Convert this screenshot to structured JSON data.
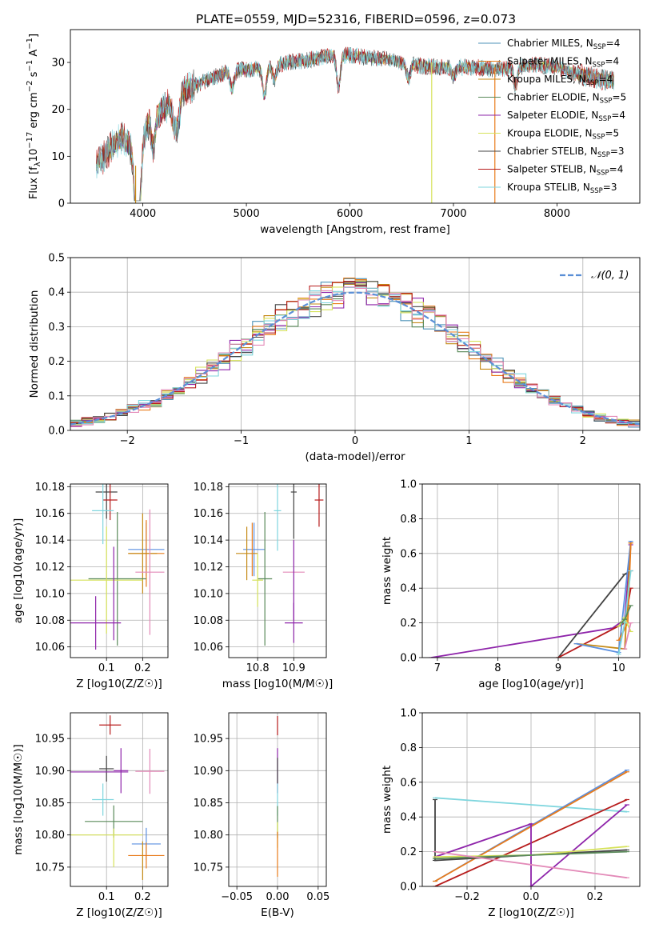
{
  "title": "PLATE=0559, MJD=52316, FIBERID=0596, z=0.073",
  "colors": {
    "chabrier_miles": "#4f93b8",
    "salpeter_miles": "#e87b1a",
    "kroupa_miles": "#c58a16",
    "chabrier_elodie": "#5a8a5a",
    "salpeter_elodie": "#8e24aa",
    "kroupa_elodie": "#d6e25a",
    "chabrier_stelib": "#444444",
    "salpeter_stelib": "#b71c1c",
    "kroupa_stelib": "#7fd6de",
    "pink": "#e38ab8",
    "blue": "#5b8fe0",
    "normal": "#5b8fd6"
  },
  "chart_data": [
    {
      "id": "spectrum",
      "type": "line",
      "xlabel": "wavelength [Angstrom, rest frame]",
      "ylabel": "Flux [f_λ 10^-17 erg cm^-2 s^-1 A^-1]",
      "xlim": [
        3300,
        8800
      ],
      "ylim": [
        0,
        37
      ],
      "xticks": [
        4000,
        5000,
        6000,
        7000,
        8000
      ],
      "yticks": [
        0,
        10,
        20,
        30
      ],
      "legend_position": "top-right",
      "series": [
        {
          "name": "Chabrier MILES, N_SSP=4",
          "label": "Chabrier MILES, N",
          "n": "=4",
          "color_key": "chabrier_miles"
        },
        {
          "name": "Salpeter MILES, N_SSP=4",
          "label": "Salpeter MILES, N",
          "n": "=4",
          "color_key": "salpeter_miles"
        },
        {
          "name": "Kroupa MILES, N_SSP=4",
          "label": "Kroupa MILES, N",
          "n": "=4",
          "color_key": "kroupa_miles"
        },
        {
          "name": "Chabrier ELODIE, N_SSP=5",
          "label": "Chabrier ELODIE, N",
          "n": "=5",
          "color_key": "chabrier_elodie"
        },
        {
          "name": "Salpeter ELODIE, N_SSP=4",
          "label": "Salpeter ELODIE, N",
          "n": "=4",
          "color_key": "salpeter_elodie"
        },
        {
          "name": "Kroupa ELODIE, N_SSP=5",
          "label": "Kroupa ELODIE, N",
          "n": "=5",
          "color_key": "kroupa_elodie"
        },
        {
          "name": "Chabrier STELIB, N_SSP=3",
          "label": "Chabrier STELIB, N",
          "n": "=3",
          "color_key": "chabrier_stelib"
        },
        {
          "name": "Salpeter STELIB, N_SSP=4",
          "label": "Salpeter STELIB, N",
          "n": "=4",
          "color_key": "salpeter_stelib"
        },
        {
          "name": "Kroupa STELIB, N_SSP=3",
          "label": "Kroupa STELIB, N",
          "n": "=3",
          "color_key": "kroupa_stelib"
        }
      ],
      "envelope": [
        [
          3550,
          8
        ],
        [
          3700,
          12
        ],
        [
          3800,
          14
        ],
        [
          3950,
          10
        ],
        [
          4050,
          17
        ],
        [
          4200,
          20
        ],
        [
          4400,
          24
        ],
        [
          4600,
          26
        ],
        [
          4800,
          28
        ],
        [
          5000,
          28.5
        ],
        [
          5200,
          29
        ],
        [
          5400,
          30
        ],
        [
          5600,
          30.5
        ],
        [
          5800,
          31.5
        ],
        [
          6000,
          31.5
        ],
        [
          6200,
          31
        ],
        [
          6400,
          30.5
        ],
        [
          6600,
          29.5
        ],
        [
          6800,
          29
        ],
        [
          7000,
          29
        ],
        [
          7200,
          29
        ],
        [
          7400,
          28.5
        ],
        [
          7600,
          29
        ],
        [
          7800,
          29.5
        ],
        [
          8000,
          29
        ],
        [
          8200,
          27.5
        ],
        [
          8400,
          26.5
        ],
        [
          8550,
          26
        ]
      ],
      "absorptions": [
        [
          3933,
          14
        ],
        [
          3968,
          12
        ],
        [
          4101,
          6
        ],
        [
          4300,
          5
        ],
        [
          4340,
          6
        ],
        [
          4861,
          4
        ],
        [
          5175,
          6
        ],
        [
          5270,
          3
        ],
        [
          5890,
          7
        ],
        [
          6563,
          3
        ],
        [
          7000,
          2
        ],
        [
          7600,
          4
        ]
      ],
      "spikes": [
        {
          "x": 3930,
          "ymin": 0,
          "ymax": 8,
          "color_key": "kroupa_miles"
        },
        {
          "x": 6790,
          "ymin": 0,
          "ymax": 30,
          "color_key": "kroupa_elodie"
        },
        {
          "x": 7400,
          "ymin": 0,
          "ymax": 29,
          "color_key": "salpeter_miles"
        }
      ]
    },
    {
      "id": "residuals",
      "type": "line",
      "xlabel": "(data-model)/error",
      "ylabel": "Normed distribution",
      "xlim": [
        -2.5,
        2.5
      ],
      "ylim": [
        0,
        0.5
      ],
      "xticks": [
        -2,
        -1,
        0,
        1,
        2
      ],
      "yticks": [
        0.0,
        0.1,
        0.2,
        0.3,
        0.4,
        0.5
      ],
      "grid": true,
      "legend_position": "top-right",
      "legend": "𝒩(0, 1)",
      "bin_width": 0.1,
      "bin_start": -2.5,
      "bin_count": 50,
      "curve": {
        "name": "N(0,1)",
        "mean": 0,
        "sigma": 1,
        "color_key": "normal"
      }
    },
    {
      "id": "age_vs_Z",
      "type": "scatter",
      "xlabel": "Z [log10(Z/Z☉)]",
      "ylabel": "age  [log10(age/yr)]",
      "xlim": [
        0.0,
        0.27
      ],
      "ylim": [
        10.052,
        10.182
      ],
      "xticks": [
        0.1,
        0.2
      ],
      "yticks": [
        10.06,
        10.08,
        10.1,
        10.12,
        10.14,
        10.16,
        10.18
      ],
      "grid": true,
      "points": [
        {
          "x": 0.1,
          "y": 10.176,
          "xerr": 0.03,
          "yerr": 0.02,
          "color_key": "chabrier_stelib"
        },
        {
          "x": 0.11,
          "y": 10.17,
          "xerr": 0.02,
          "yerr": 0.015,
          "color_key": "salpeter_stelib"
        },
        {
          "x": 0.09,
          "y": 10.162,
          "xerr": 0.03,
          "yerr": 0.025,
          "color_key": "kroupa_stelib"
        },
        {
          "x": 0.21,
          "y": 10.133,
          "xerr": 0.05,
          "yerr": 0.02,
          "color_key": "blue"
        },
        {
          "x": 0.21,
          "y": 10.13,
          "xerr": 0.05,
          "yerr": 0.025,
          "color_key": "salpeter_miles"
        },
        {
          "x": 0.2,
          "y": 10.13,
          "xerr": 0.04,
          "yerr": 0.03,
          "color_key": "kroupa_miles"
        },
        {
          "x": 0.22,
          "y": 10.116,
          "xerr": 0.04,
          "yerr": 0.047,
          "color_key": "pink"
        },
        {
          "x": 0.13,
          "y": 10.111,
          "xerr": 0.08,
          "yerr": 0.05,
          "color_key": "chabrier_elodie"
        },
        {
          "x": 0.1,
          "y": 10.11,
          "xerr": 0.1,
          "yerr": 0.04,
          "color_key": "kroupa_elodie"
        },
        {
          "x": 0.07,
          "y": 10.078,
          "xerr": 0.07,
          "yerr": 0.02,
          "color_key": "salpeter_elodie"
        },
        {
          "x": 0.12,
          "y": 10.1,
          "xerr": 0.0,
          "yerr": 0.035,
          "color_key": "salpeter_elodie"
        }
      ]
    },
    {
      "id": "age_vs_mass",
      "type": "scatter",
      "xlabel": "mass [log10(M/M☉)]",
      "ylabel": "",
      "xlim": [
        10.72,
        10.99
      ],
      "ylim": [
        10.052,
        10.182
      ],
      "xticks": [
        10.8,
        10.9
      ],
      "yticks": [
        10.06,
        10.08,
        10.1,
        10.12,
        10.14,
        10.16,
        10.18
      ],
      "grid": true,
      "points": [
        {
          "x": 10.9,
          "y": 10.176,
          "xerr": 0.008,
          "yerr": 0.035,
          "color_key": "chabrier_stelib"
        },
        {
          "x": 10.97,
          "y": 10.17,
          "xerr": 0.012,
          "yerr": 0.02,
          "color_key": "salpeter_stelib"
        },
        {
          "x": 10.855,
          "y": 10.162,
          "xerr": 0.01,
          "yerr": 0.03,
          "color_key": "kroupa_stelib"
        },
        {
          "x": 10.79,
          "y": 10.133,
          "xerr": 0.03,
          "yerr": 0.02,
          "color_key": "blue"
        },
        {
          "x": 10.77,
          "y": 10.13,
          "xerr": 0.03,
          "yerr": 0.02,
          "color_key": "kroupa_miles"
        },
        {
          "x": 10.785,
          "y": 10.133,
          "xerr": 0.0,
          "yerr": 0.02,
          "color_key": "salpeter_miles"
        },
        {
          "x": 10.9,
          "y": 10.116,
          "xerr": 0.03,
          "yerr": 0.0,
          "color_key": "pink"
        },
        {
          "x": 10.82,
          "y": 10.111,
          "xerr": 0.02,
          "yerr": 0.05,
          "color_key": "chabrier_elodie"
        },
        {
          "x": 10.8,
          "y": 10.11,
          "xerr": 0.015,
          "yerr": 0.02,
          "color_key": "kroupa_elodie"
        },
        {
          "x": 10.9,
          "y": 10.078,
          "xerr": 0.025,
          "yerr": 0.015,
          "color_key": "salpeter_elodie"
        },
        {
          "x": 10.9,
          "y": 10.11,
          "xerr": 0.0,
          "yerr": 0.03,
          "color_key": "salpeter_elodie"
        }
      ]
    },
    {
      "id": "massweight_vs_age",
      "type": "line",
      "xlabel": "age  [log10(age/yr)]",
      "ylabel": "mass weight",
      "xlim": [
        6.75,
        10.35
      ],
      "ylim": [
        0,
        1.0
      ],
      "xticks": [
        7,
        8,
        9,
        10
      ],
      "yticks": [
        0.0,
        0.2,
        0.4,
        0.6,
        0.8,
        1.0
      ],
      "grid": true,
      "series": [
        {
          "color_key": "salpeter_elodie",
          "points": [
            [
              6.9,
              0.0
            ],
            [
              9.9,
              0.17
            ],
            [
              10.1,
              0.22
            ],
            [
              10.2,
              0.65
            ]
          ]
        },
        {
          "color_key": "chabrier_stelib",
          "points": [
            [
              9.0,
              0.0
            ],
            [
              10.1,
              0.48
            ],
            [
              10.2,
              0.5
            ]
          ]
        },
        {
          "color_key": "salpeter_stelib",
          "points": [
            [
              9.0,
              0.0
            ],
            [
              10.1,
              0.2
            ],
            [
              10.2,
              0.4
            ]
          ]
        },
        {
          "color_key": "kroupa_miles",
          "points": [
            [
              9.3,
              0.08
            ],
            [
              10.1,
              0.05
            ],
            [
              10.2,
              0.66
            ]
          ]
        },
        {
          "color_key": "blue",
          "points": [
            [
              9.3,
              0.08
            ],
            [
              10.0,
              0.03
            ],
            [
              10.2,
              0.67
            ]
          ]
        },
        {
          "color_key": "salpeter_miles",
          "points": [
            [
              10.0,
              0.1
            ],
            [
              10.15,
              0.2
            ],
            [
              10.2,
              0.66
            ]
          ]
        },
        {
          "color_key": "kroupa_elodie",
          "points": [
            [
              10.0,
              0.18
            ],
            [
              10.1,
              0.23
            ],
            [
              10.2,
              0.15
            ]
          ]
        },
        {
          "color_key": "kroupa_stelib",
          "points": [
            [
              10.0,
              0.02
            ],
            [
              10.1,
              0.2
            ],
            [
              10.2,
              0.5
            ]
          ]
        },
        {
          "color_key": "chabrier_elodie",
          "points": [
            [
              10.05,
              0.2
            ],
            [
              10.1,
              0.22
            ],
            [
              10.2,
              0.3
            ]
          ]
        },
        {
          "color_key": "pink",
          "points": [
            [
              10.1,
              0.05
            ],
            [
              10.2,
              0.2
            ]
          ]
        }
      ]
    },
    {
      "id": "mass_vs_Z",
      "type": "scatter",
      "xlabel": "Z [log10(Z/Z☉)]",
      "ylabel": "mass [log10(M/M☉)]",
      "xlim": [
        0.0,
        0.27
      ],
      "ylim": [
        10.72,
        10.99
      ],
      "xticks": [
        0.1,
        0.2
      ],
      "yticks": [
        10.75,
        10.8,
        10.85,
        10.9,
        10.95
      ],
      "grid": true,
      "points": [
        {
          "x": 0.11,
          "y": 10.971,
          "xerr": 0.03,
          "yerr": 0.015,
          "color_key": "salpeter_stelib"
        },
        {
          "x": 0.14,
          "y": 10.9,
          "xerr": 0.02,
          "yerr": 0.035,
          "color_key": "salpeter_elodie"
        },
        {
          "x": 0.1,
          "y": 10.903,
          "xerr": 0.02,
          "yerr": 0.02,
          "color_key": "chabrier_stelib"
        },
        {
          "x": 0.07,
          "y": 10.898,
          "xerr": 0.09,
          "yerr": 0.0,
          "color_key": "salpeter_elodie"
        },
        {
          "x": 0.22,
          "y": 10.899,
          "xerr": 0.04,
          "yerr": 0.035,
          "color_key": "pink"
        },
        {
          "x": 0.09,
          "y": 10.855,
          "xerr": 0.03,
          "yerr": 0.025,
          "color_key": "kroupa_stelib"
        },
        {
          "x": 0.12,
          "y": 10.821,
          "xerr": 0.08,
          "yerr": 0.025,
          "color_key": "chabrier_elodie"
        },
        {
          "x": 0.1,
          "y": 10.8,
          "xerr": 0.1,
          "yerr": 0.0,
          "color_key": "kroupa_elodie"
        },
        {
          "x": 0.12,
          "y": 10.78,
          "xerr": 0.0,
          "yerr": 0.03,
          "color_key": "kroupa_elodie"
        },
        {
          "x": 0.21,
          "y": 10.786,
          "xerr": 0.04,
          "yerr": 0.025,
          "color_key": "blue"
        },
        {
          "x": 0.21,
          "y": 10.768,
          "xerr": 0.05,
          "yerr": 0.02,
          "color_key": "salpeter_miles"
        },
        {
          "x": 0.2,
          "y": 10.76,
          "xerr": 0.0,
          "yerr": 0.03,
          "color_key": "kroupa_miles"
        }
      ]
    },
    {
      "id": "mass_vs_ebv",
      "type": "scatter",
      "xlabel": "E(B-V)",
      "ylabel": "",
      "xlim": [
        -0.06,
        0.06
      ],
      "ylim": [
        10.72,
        10.99
      ],
      "xticks": [
        -0.05,
        0.0,
        0.05
      ],
      "xticklabels": [
        "−0.05",
        "0.00",
        "0.05"
      ],
      "yticks": [
        10.75,
        10.8,
        10.85,
        10.9,
        10.95
      ],
      "grid": true,
      "points": [
        {
          "x": 0.0,
          "y": 10.97,
          "yerr": 0.015,
          "color_key": "salpeter_stelib"
        },
        {
          "x": 0.0,
          "y": 10.9,
          "yerr": 0.035,
          "color_key": "salpeter_elodie"
        },
        {
          "x": 0.0,
          "y": 10.9,
          "yerr": 0.02,
          "color_key": "chabrier_stelib"
        },
        {
          "x": 0.0,
          "y": 10.855,
          "yerr": 0.025,
          "color_key": "kroupa_stelib"
        },
        {
          "x": 0.0,
          "y": 10.82,
          "yerr": 0.025,
          "color_key": "chabrier_elodie"
        },
        {
          "x": 0.0,
          "y": 10.8,
          "yerr": 0.02,
          "color_key": "kroupa_elodie"
        },
        {
          "x": 0.0,
          "y": 10.77,
          "yerr": 0.035,
          "color_key": "salpeter_miles"
        }
      ]
    },
    {
      "id": "massweight_vs_Z",
      "type": "line",
      "xlabel": "Z [log10(Z/Z☉)]",
      "ylabel": "mass weight",
      "xlim": [
        -0.34,
        0.34
      ],
      "ylim": [
        0,
        1.0
      ],
      "xticks": [
        -0.2,
        0.0,
        0.2
      ],
      "xticklabels": [
        "−0.2",
        "0.0",
        "0.2"
      ],
      "yticks": [
        0.0,
        0.2,
        0.4,
        0.6,
        0.8,
        1.0
      ],
      "grid": true,
      "series": [
        {
          "color_key": "kroupa_stelib",
          "points": [
            [
              -0.3,
              0.51
            ],
            [
              0.3,
              0.43
            ]
          ]
        },
        {
          "color_key": "blue",
          "points": [
            [
              -0.3,
              0.03
            ],
            [
              0.3,
              0.67
            ]
          ]
        },
        {
          "color_key": "salpeter_miles",
          "points": [
            [
              -0.3,
              0.03
            ],
            [
              0.3,
              0.66
            ]
          ]
        },
        {
          "color_key": "salpeter_stelib",
          "points": [
            [
              -0.3,
              0.0
            ],
            [
              0.3,
              0.5
            ]
          ]
        },
        {
          "color_key": "chabrier_stelib",
          "points": [
            [
              -0.3,
              0.5
            ],
            [
              -0.3,
              0.15
            ],
            [
              0.3,
              0.21
            ]
          ]
        },
        {
          "color_key": "salpeter_elodie",
          "points": [
            [
              -0.3,
              0.17
            ],
            [
              0.0,
              0.36
            ],
            [
              0.0,
              0.0
            ],
            [
              0.3,
              0.47
            ]
          ]
        },
        {
          "color_key": "kroupa_elodie",
          "points": [
            [
              -0.3,
              0.17
            ],
            [
              0.0,
              0.18
            ],
            [
              0.3,
              0.23
            ]
          ]
        },
        {
          "color_key": "chabrier_elodie",
          "points": [
            [
              -0.3,
              0.16
            ],
            [
              0.3,
              0.2
            ]
          ]
        },
        {
          "color_key": "pink",
          "points": [
            [
              -0.3,
              0.2
            ],
            [
              0.3,
              0.05
            ]
          ]
        }
      ]
    }
  ]
}
